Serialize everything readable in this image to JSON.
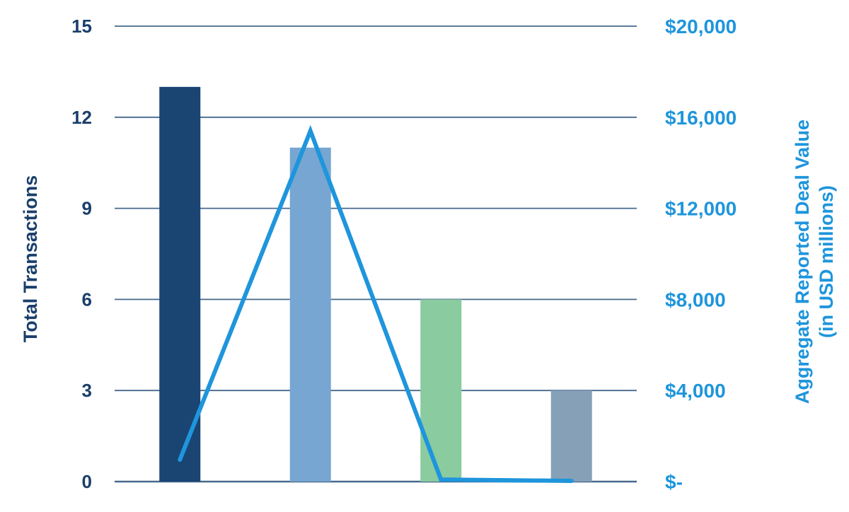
{
  "chart_data": {
    "type": "bar",
    "categories": [
      "",
      "",
      "",
      ""
    ],
    "series": [
      {
        "kind": "bar",
        "axis": "left",
        "values": [
          13,
          11,
          6,
          3
        ],
        "colors": [
          "#1a4472",
          "#76a6d1",
          "#8acb9f",
          "#86a0b8"
        ]
      },
      {
        "kind": "line",
        "axis": "right",
        "values": [
          960,
          15400,
          90,
          30
        ],
        "color": "#1e95dc"
      }
    ],
    "ylabel": "Total Transactions",
    "y2label_lines": [
      "Aggregate Reported Deal Value",
      "(in USD millions)"
    ],
    "ylim": [
      0,
      15
    ],
    "y2lim": [
      0,
      20000
    ],
    "yticks": [
      "0",
      "3",
      "6",
      "9",
      "12",
      "15"
    ],
    "y2ticks": [
      "$-",
      "$4,000",
      "$8,000",
      "$12,000",
      "$16,000",
      "$20,000"
    ],
    "grid": true,
    "legend": "none",
    "colors": {
      "left_axis_text": "#1a3f6b",
      "right_axis_text": "#1e95dc",
      "grid": "#46698c"
    }
  }
}
